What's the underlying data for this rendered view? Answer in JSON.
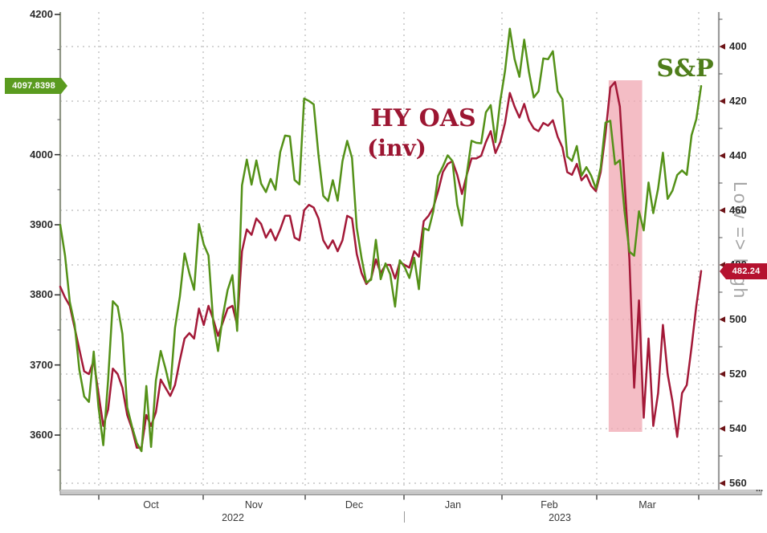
{
  "chart_data": {
    "type": "line",
    "annotations": {
      "series1_label": "S&P",
      "series2_label_line1": "HY OAS",
      "series2_label_line2": "(inv)",
      "right_axis_note": "Low => high",
      "x_axis_ellipsis": "..."
    },
    "x_dates": [
      "2022-09-19",
      "2022-09-20",
      "2022-09-21",
      "2022-09-22",
      "2022-09-23",
      "2022-09-26",
      "2022-09-27",
      "2022-09-28",
      "2022-09-29",
      "2022-09-30",
      "2022-10-03",
      "2022-10-04",
      "2022-10-05",
      "2022-10-06",
      "2022-10-07",
      "2022-10-10",
      "2022-10-11",
      "2022-10-12",
      "2022-10-13",
      "2022-10-14",
      "2022-10-17",
      "2022-10-18",
      "2022-10-19",
      "2022-10-20",
      "2022-10-21",
      "2022-10-24",
      "2022-10-25",
      "2022-10-26",
      "2022-10-27",
      "2022-10-28",
      "2022-10-31",
      "2022-11-01",
      "2022-11-02",
      "2022-11-03",
      "2022-11-04",
      "2022-11-07",
      "2022-11-08",
      "2022-11-09",
      "2022-11-10",
      "2022-11-11",
      "2022-11-14",
      "2022-11-15",
      "2022-11-16",
      "2022-11-17",
      "2022-11-18",
      "2022-11-21",
      "2022-11-22",
      "2022-11-23",
      "2022-11-25",
      "2022-11-28",
      "2022-11-29",
      "2022-11-30",
      "2022-12-01",
      "2022-12-02",
      "2022-12-05",
      "2022-12-06",
      "2022-12-07",
      "2022-12-08",
      "2022-12-09",
      "2022-12-12",
      "2022-12-13",
      "2022-12-14",
      "2022-12-15",
      "2022-12-16",
      "2022-12-19",
      "2022-12-20",
      "2022-12-21",
      "2022-12-22",
      "2022-12-23",
      "2022-12-27",
      "2022-12-28",
      "2022-12-29",
      "2022-12-30",
      "2023-01-03",
      "2023-01-04",
      "2023-01-05",
      "2023-01-06",
      "2023-01-09",
      "2023-01-10",
      "2023-01-11",
      "2023-01-12",
      "2023-01-13",
      "2023-01-17",
      "2023-01-18",
      "2023-01-19",
      "2023-01-20",
      "2023-01-23",
      "2023-01-24",
      "2023-01-25",
      "2023-01-26",
      "2023-01-27",
      "2023-01-30",
      "2023-01-31",
      "2023-02-01",
      "2023-02-02",
      "2023-02-03",
      "2023-02-06",
      "2023-02-07",
      "2023-02-08",
      "2023-02-09",
      "2023-02-10",
      "2023-02-13",
      "2023-02-14",
      "2023-02-15",
      "2023-02-16",
      "2023-02-17",
      "2023-02-21",
      "2023-02-22",
      "2023-02-23",
      "2023-02-24",
      "2023-02-27",
      "2023-02-28",
      "2023-03-01",
      "2023-03-02",
      "2023-03-03",
      "2023-03-06",
      "2023-03-07",
      "2023-03-08",
      "2023-03-09",
      "2023-03-10",
      "2023-03-13",
      "2023-03-14",
      "2023-03-15",
      "2023-03-16",
      "2023-03-17",
      "2023-03-20",
      "2023-03-21",
      "2023-03-22",
      "2023-03-23",
      "2023-03-24",
      "2023-03-27",
      "2023-03-28",
      "2023-03-29",
      "2023-03-30",
      "2023-03-31"
    ],
    "series": [
      {
        "name": "S&P",
        "axis": "left",
        "color": "#549118",
        "values": [
          3899.89,
          3855.93,
          3789.93,
          3757.99,
          3693.23,
          3655.04,
          3647.29,
          3719.04,
          3640.47,
          3585.62,
          3678.43,
          3790.93,
          3783.28,
          3744.52,
          3639.66,
          3612.39,
          3588.84,
          3577.03,
          3669.91,
          3583.07,
          3677.95,
          3719.98,
          3695.16,
          3665.78,
          3752.75,
          3797.34,
          3859.11,
          3830.6,
          3807.3,
          3901.06,
          3871.98,
          3856.1,
          3759.69,
          3719.89,
          3770.55,
          3806.8,
          3828.11,
          3748.57,
          3956.37,
          3992.93,
          3957.25,
          3991.73,
          3958.79,
          3946.56,
          3965.34,
          3949.94,
          4003.58,
          4027.26,
          4026.12,
          3963.94,
          3957.63,
          4080.11,
          4076.57,
          4071.7,
          3998.84,
          3941.26,
          3933.92,
          3963.51,
          3934.38,
          3990.56,
          4019.65,
          3995.32,
          3895.75,
          3852.36,
          3817.66,
          3821.62,
          3878.44,
          3822.39,
          3844.82,
          3829.25,
          3783.22,
          3849.28,
          3839.5,
          3824.14,
          3852.97,
          3808.1,
          3895.08,
          3892.09,
          3919.25,
          3969.61,
          3983.17,
          3999.09,
          3990.97,
          3928.86,
          3898.85,
          3972.61,
          4019.81,
          4016.95,
          4016.22,
          4060.43,
          4070.56,
          4017.77,
          4076.6,
          4119.21,
          4179.76,
          4136.48,
          4111.08,
          4164.0,
          4117.86,
          4081.5,
          4090.46,
          4137.29,
          4136.13,
          4147.6,
          4090.41,
          4079.09,
          3997.34,
          3991.05,
          4012.32,
          3970.04,
          3982.24,
          3970.15,
          3951.39,
          3981.35,
          4045.64,
          4048.42,
          3986.37,
          3992.01,
          3918.32,
          3861.59,
          3855.76,
          3919.29,
          3891.93,
          3960.28,
          3916.64,
          3951.57,
          4002.87,
          3936.97,
          3948.72,
          3970.99,
          3977.53,
          3971.27,
          4027.81,
          4050.83,
          4097.84
        ]
      },
      {
        "name": "HY OAS (inv)",
        "axis": "right",
        "inverted": true,
        "color": "#a31938",
        "values": [
          488,
          492,
          495,
          503,
          511,
          519,
          520,
          515,
          527,
          539,
          533,
          518,
          520,
          525,
          535,
          540,
          547,
          547,
          535,
          539,
          534,
          522,
          525,
          528,
          524,
          515,
          507,
          505,
          507,
          496,
          502,
          495,
          500,
          506,
          501,
          496,
          495,
          502,
          475,
          467,
          469,
          463,
          465,
          470,
          467,
          471,
          467,
          462,
          462,
          470,
          471,
          460,
          458,
          459,
          463,
          471,
          474,
          471,
          475,
          471,
          462,
          463,
          476,
          483,
          487,
          485,
          478,
          483,
          480,
          480,
          485,
          479,
          480,
          481,
          475,
          477,
          464,
          462,
          459,
          453,
          446,
          443,
          442,
          447,
          454,
          447,
          441,
          441,
          440,
          435,
          431,
          439,
          435,
          428,
          417,
          422,
          426,
          421,
          427,
          430,
          431,
          428,
          429,
          427,
          433,
          437,
          446,
          447,
          443,
          449,
          447,
          451,
          453,
          446,
          432,
          415,
          413,
          422,
          450,
          478,
          525,
          493,
          536,
          507,
          539,
          527,
          502,
          520,
          530,
          543,
          527,
          524,
          510,
          495,
          482.24
        ]
      }
    ],
    "left_axis": {
      "ticks": [
        4200,
        4100,
        4000,
        3900,
        3800,
        3700,
        3600
      ],
      "range": [
        3600,
        4200
      ],
      "last_value_label": "4097.8398",
      "badge_color": "#5a9b1f"
    },
    "right_axis": {
      "ticks": [
        400,
        420,
        440,
        460,
        480,
        500,
        520,
        540,
        560
      ],
      "range": [
        400,
        560
      ],
      "inverted": true,
      "last_value_label": "482.24",
      "badge_color": "#b5122f"
    },
    "x_axis": {
      "month_labels": [
        "Oct",
        "Nov",
        "Dec",
        "Jan",
        "Feb",
        "Mar"
      ],
      "year_labels": [
        "2022",
        "2023"
      ]
    },
    "highlight_band": {
      "from": "2023-03-06",
      "to": "2023-03-14",
      "color": "#f0a7b2"
    },
    "grid": true,
    "legend_position": "none"
  }
}
